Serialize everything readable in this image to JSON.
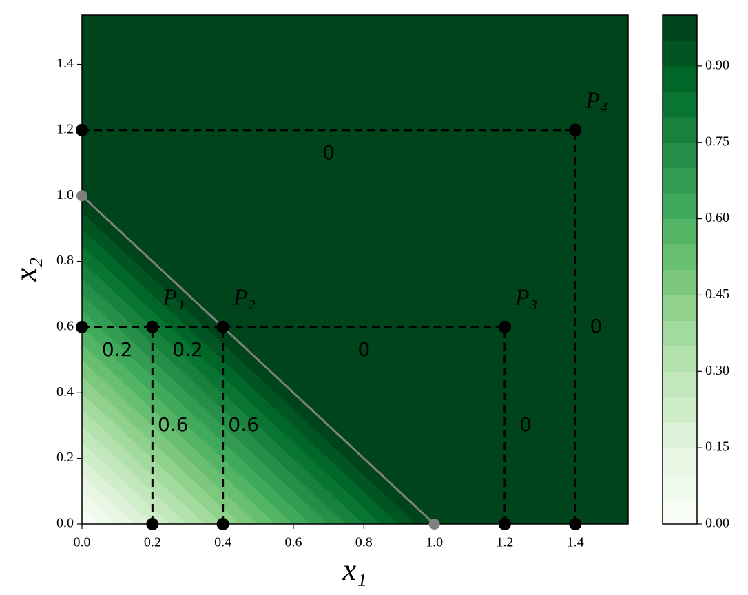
{
  "chart_data": {
    "type": "contour",
    "x_label": "x₁",
    "y_label": "x₂",
    "xlim": [
      0,
      1.55
    ],
    "ylim": [
      0,
      1.55
    ],
    "xticks": [
      {
        "value": 0,
        "label": "0.0"
      },
      {
        "value": 0.2,
        "label": "0.2"
      },
      {
        "value": 0.4,
        "label": "0.4"
      },
      {
        "value": 0.6,
        "label": "0.6"
      },
      {
        "value": 0.8,
        "label": "0.8"
      },
      {
        "value": 1,
        "label": "1.0"
      },
      {
        "value": 1.2,
        "label": "1.2"
      },
      {
        "value": 1.4,
        "label": "1.4"
      }
    ],
    "yticks": [
      {
        "value": 0,
        "label": "0.0"
      },
      {
        "value": 0.2,
        "label": "0.2"
      },
      {
        "value": 0.4,
        "label": "0.4"
      },
      {
        "value": 0.6,
        "label": "0.6"
      },
      {
        "value": 0.8,
        "label": "0.8"
      },
      {
        "value": 1,
        "label": "1.0"
      },
      {
        "value": 1.2,
        "label": "1.2"
      },
      {
        "value": 1.4,
        "label": "1.4"
      }
    ],
    "levels": [
      0,
      0.05,
      0.1,
      0.15,
      0.2,
      0.25,
      0.3,
      0.35,
      0.4,
      0.45,
      0.5,
      0.55,
      0.6,
      0.65,
      0.7,
      0.75,
      0.8,
      0.85,
      0.9,
      0.95,
      1
    ],
    "colormap": [
      "#f7fcf5",
      "#e5f5e0",
      "#c7e9c0",
      "#a1d99b",
      "#74c476",
      "#41ab5d",
      "#238b45",
      "#006d2c",
      "#00441b"
    ],
    "colorbar_lim": [
      0,
      1
    ],
    "colorbar_ticks": [
      {
        "value": 0,
        "label": "0.00"
      },
      {
        "value": 0.15,
        "label": "0.15"
      },
      {
        "value": 0.3,
        "label": "0.30"
      },
      {
        "value": 0.45,
        "label": "0.45"
      },
      {
        "value": 0.6,
        "label": "0.60"
      },
      {
        "value": 0.75,
        "label": "0.75"
      },
      {
        "value": 0.9,
        "label": "0.90"
      }
    ],
    "boundary": {
      "x": [
        0,
        1
      ],
      "y": [
        1,
        0
      ],
      "color": "#808080"
    },
    "points": [
      {
        "label": "P₁",
        "x": 0.2,
        "y": 0.6
      },
      {
        "label": "P₂",
        "x": 0.4,
        "y": 0.6
      },
      {
        "label": "P₃",
        "x": 1.2,
        "y": 0.6
      },
      {
        "label": "P₄",
        "x": 1.4,
        "y": 1.2
      }
    ],
    "segments": [
      {
        "x": [
          0,
          0.2
        ],
        "y": [
          0.6,
          0.6
        ],
        "label": "0.2"
      },
      {
        "x": [
          0.2,
          0.4
        ],
        "y": [
          0.6,
          0.6
        ],
        "label": "0.2"
      },
      {
        "x": [
          0.4,
          1.2
        ],
        "y": [
          0.6,
          0.6
        ],
        "label": "0"
      },
      {
        "x": [
          0.2,
          0.2
        ],
        "y": [
          0,
          0.6
        ],
        "label": "0.6"
      },
      {
        "x": [
          0.4,
          0.4
        ],
        "y": [
          0,
          0.6
        ],
        "label": "0.6"
      },
      {
        "x": [
          1.2,
          1.2
        ],
        "y": [
          0,
          0.6
        ],
        "label": "0"
      },
      {
        "x": [
          0,
          1.4
        ],
        "y": [
          1.2,
          1.2
        ],
        "label": "0"
      },
      {
        "x": [
          1.4,
          1.4
        ],
        "y": [
          0,
          1.2
        ],
        "label": "0"
      }
    ]
  }
}
